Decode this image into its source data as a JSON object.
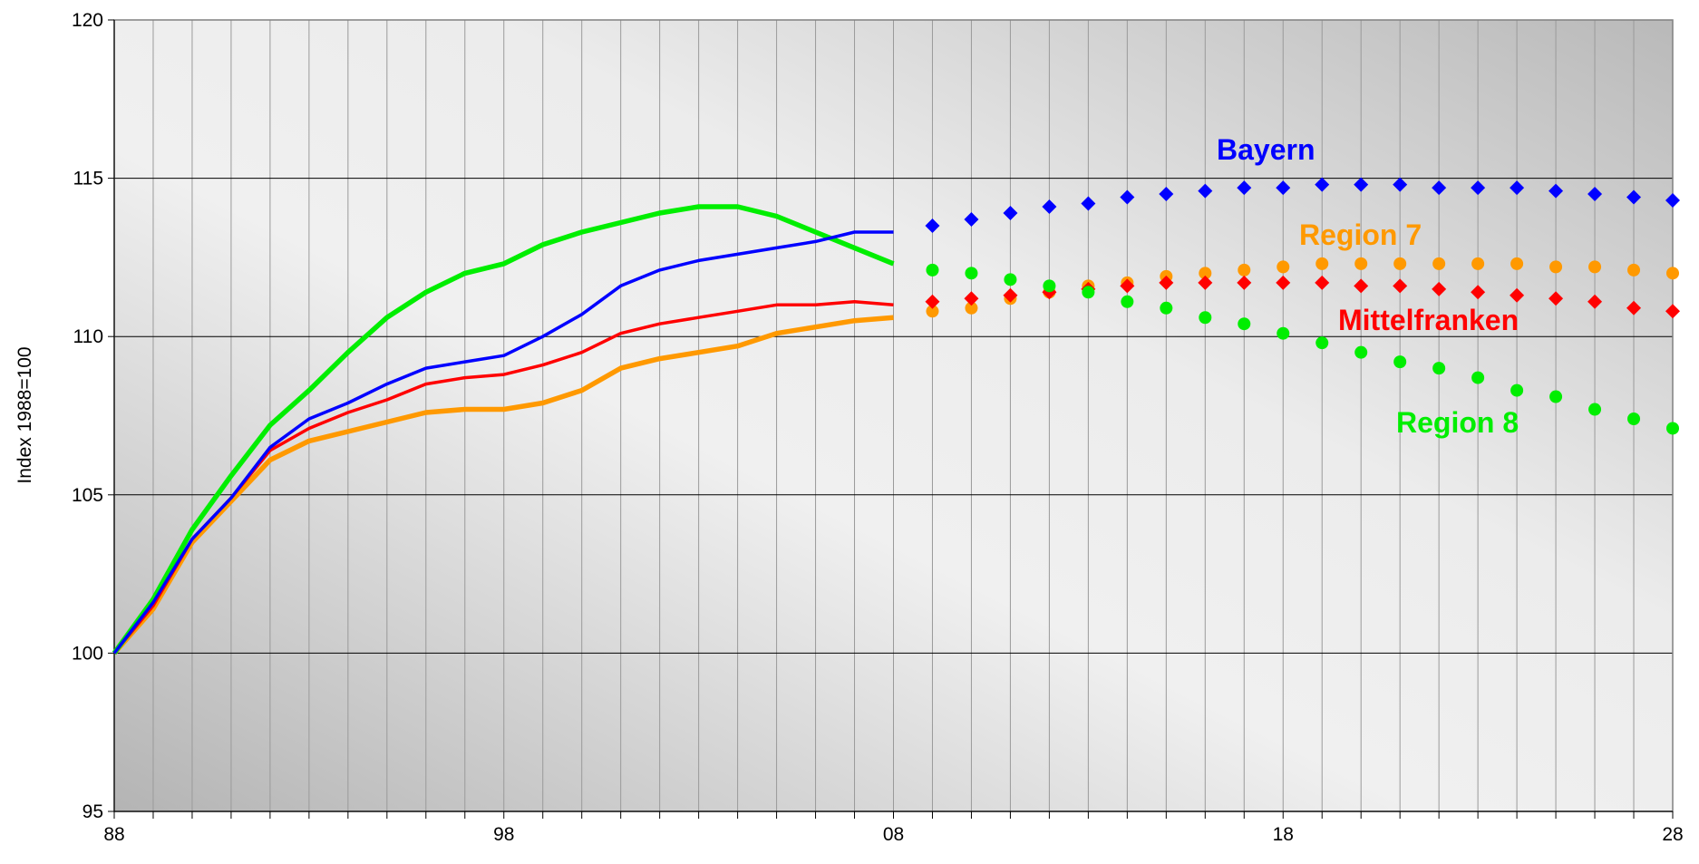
{
  "chart_data": {
    "type": "line",
    "title": "",
    "xlabel": "",
    "ylabel": "Index 1988=100",
    "xlim": [
      1988,
      2028
    ],
    "ylim": [
      95,
      120
    ],
    "x_ticks": [
      1988,
      1998,
      2008,
      2018,
      2028
    ],
    "x_tick_labels": [
      "88",
      "98",
      "08",
      "18",
      "28"
    ],
    "y_ticks": [
      95,
      100,
      105,
      110,
      115,
      120
    ],
    "y_tick_labels": [
      "95",
      "100",
      "105",
      "110",
      "115",
      "120"
    ],
    "grid": "vertical yearly lines, horizontal lines at major y ticks",
    "background": "grey gradient",
    "legend": "none; inline series labels",
    "series": [
      {
        "name": "Bayern",
        "color": "#0000ff",
        "marker": "diamond",
        "historical": {
          "x": [
            1988,
            1989,
            1990,
            1991,
            1992,
            1993,
            1994,
            1995,
            1996,
            1997,
            1998,
            1999,
            2000,
            2001,
            2002,
            2003,
            2004,
            2005,
            2006,
            2007,
            2008
          ],
          "y": [
            100.0,
            101.6,
            103.6,
            104.9,
            106.5,
            107.4,
            107.9,
            108.5,
            109.0,
            109.2,
            109.4,
            110.0,
            110.7,
            111.6,
            112.1,
            112.4,
            112.6,
            112.8,
            113.0,
            113.3,
            113.3
          ]
        },
        "projection": {
          "x": [
            2009,
            2010,
            2011,
            2012,
            2013,
            2014,
            2015,
            2016,
            2017,
            2018,
            2019,
            2020,
            2021,
            2022,
            2023,
            2024,
            2025,
            2026,
            2027,
            2028
          ],
          "y": [
            113.5,
            113.7,
            113.9,
            114.1,
            114.2,
            114.4,
            114.5,
            114.6,
            114.7,
            114.7,
            114.8,
            114.8,
            114.8,
            114.7,
            114.7,
            114.7,
            114.6,
            114.5,
            114.4,
            114.3
          ]
        }
      },
      {
        "name": "Region 7",
        "color": "#ff9900",
        "marker": "circle",
        "historical": {
          "x": [
            1988,
            1989,
            1990,
            1991,
            1992,
            1993,
            1994,
            1995,
            1996,
            1997,
            1998,
            1999,
            2000,
            2001,
            2002,
            2003,
            2004,
            2005,
            2006,
            2007,
            2008
          ],
          "y": [
            100.0,
            101.4,
            103.5,
            104.8,
            106.1,
            106.7,
            107.0,
            107.3,
            107.6,
            107.7,
            107.7,
            107.9,
            108.3,
            109.0,
            109.3,
            109.5,
            109.7,
            110.1,
            110.3,
            110.5,
            110.6
          ]
        },
        "projection": {
          "x": [
            2009,
            2010,
            2011,
            2012,
            2013,
            2014,
            2015,
            2016,
            2017,
            2018,
            2019,
            2020,
            2021,
            2022,
            2023,
            2024,
            2025,
            2026,
            2027,
            2028
          ],
          "y": [
            110.8,
            110.9,
            111.2,
            111.4,
            111.6,
            111.7,
            111.9,
            112.0,
            112.1,
            112.2,
            112.3,
            112.3,
            112.3,
            112.3,
            112.3,
            112.3,
            112.2,
            112.2,
            112.1,
            112.0
          ]
        }
      },
      {
        "name": "Mittelfranken",
        "color": "#ff0000",
        "marker": "diamond",
        "historical": {
          "x": [
            1988,
            1989,
            1990,
            1991,
            1992,
            1993,
            1994,
            1995,
            1996,
            1997,
            1998,
            1999,
            2000,
            2001,
            2002,
            2003,
            2004,
            2005,
            2006,
            2007,
            2008
          ],
          "y": [
            100.0,
            101.5,
            103.6,
            104.9,
            106.4,
            107.1,
            107.6,
            108.0,
            108.5,
            108.7,
            108.8,
            109.1,
            109.5,
            110.1,
            110.4,
            110.6,
            110.8,
            111.0,
            111.0,
            111.1,
            111.0
          ]
        },
        "projection": {
          "x": [
            2009,
            2010,
            2011,
            2012,
            2013,
            2014,
            2015,
            2016,
            2017,
            2018,
            2019,
            2020,
            2021,
            2022,
            2023,
            2024,
            2025,
            2026,
            2027,
            2028
          ],
          "y": [
            111.1,
            111.2,
            111.3,
            111.4,
            111.5,
            111.6,
            111.7,
            111.7,
            111.7,
            111.7,
            111.7,
            111.6,
            111.6,
            111.5,
            111.4,
            111.3,
            111.2,
            111.1,
            110.9,
            110.8
          ]
        }
      },
      {
        "name": "Region 8",
        "color": "#00ee00",
        "marker": "circle",
        "historical": {
          "x": [
            1988,
            1989,
            1990,
            1991,
            1992,
            1993,
            1994,
            1995,
            1996,
            1997,
            1998,
            1999,
            2000,
            2001,
            2002,
            2003,
            2004,
            2005,
            2006,
            2007,
            2008
          ],
          "y": [
            100.0,
            101.7,
            103.9,
            105.6,
            107.2,
            108.3,
            109.5,
            110.6,
            111.4,
            112.0,
            112.3,
            112.9,
            113.3,
            113.6,
            113.9,
            114.1,
            114.1,
            113.8,
            113.3,
            112.8,
            112.3
          ]
        },
        "projection": {
          "x": [
            2009,
            2010,
            2011,
            2012,
            2013,
            2014,
            2015,
            2016,
            2017,
            2018,
            2019,
            2020,
            2021,
            2022,
            2023,
            2024,
            2025,
            2026,
            2027,
            2028
          ],
          "y": [
            112.1,
            112.0,
            111.8,
            111.6,
            111.4,
            111.1,
            110.9,
            110.6,
            110.4,
            110.1,
            109.8,
            109.5,
            109.2,
            109.0,
            108.7,
            108.3,
            108.1,
            107.7,
            107.4,
            107.1
          ]
        }
      }
    ],
    "labels": {
      "bayern": "Bayern",
      "region7": "Region 7",
      "mittelfranken": "Mittelfranken",
      "region8": "Region 8"
    }
  }
}
